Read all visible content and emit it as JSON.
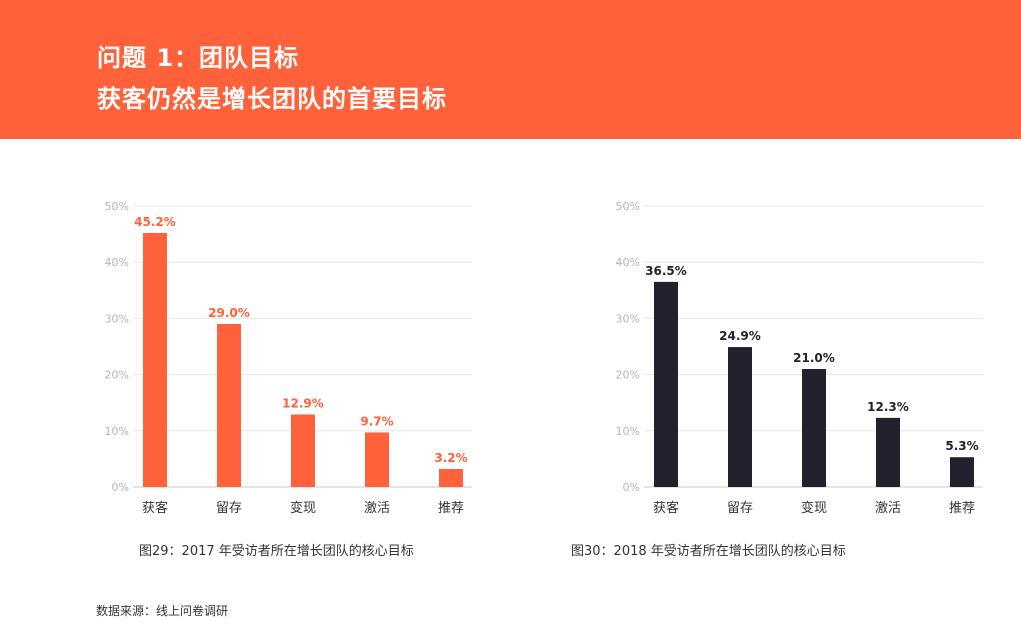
{
  "header": {
    "title_line1": "问题 1：团队目标",
    "title_line2": "获客仍然是增长团队的首要目标"
  },
  "chart_data": [
    {
      "type": "bar",
      "title": "图29：2017 年受访者所在增长团队的核心目标",
      "categories": [
        "获客",
        "留存",
        "变现",
        "激活",
        "推荐"
      ],
      "values": [
        45.2,
        29.0,
        12.9,
        9.7,
        3.2
      ],
      "value_labels": [
        "45.2%",
        "29.0%",
        "12.9%",
        "9.7%",
        "3.2%"
      ],
      "yticks": [
        "0%",
        "10%",
        "20%",
        "30%",
        "40%",
        "50%"
      ],
      "ylim": [
        0,
        50
      ],
      "grid": true,
      "bar_color": "#ff623a",
      "label_color": "#ff623a"
    },
    {
      "type": "bar",
      "title": "图30：2018 年受访者所在增长团队的核心目标",
      "categories": [
        "获客",
        "留存",
        "变现",
        "激活",
        "推荐"
      ],
      "values": [
        36.5,
        24.9,
        21.0,
        12.3,
        5.3
      ],
      "value_labels": [
        "36.5%",
        "24.9%",
        "21.0%",
        "12.3%",
        "5.3%"
      ],
      "yticks": [
        "0%",
        "10%",
        "20%",
        "30%",
        "40%",
        "50%"
      ],
      "ylim": [
        0,
        50
      ],
      "grid": true,
      "bar_color": "#22212d",
      "label_color": "#22212d"
    }
  ],
  "footer": {
    "source": "数据来源：线上问卷调研"
  }
}
